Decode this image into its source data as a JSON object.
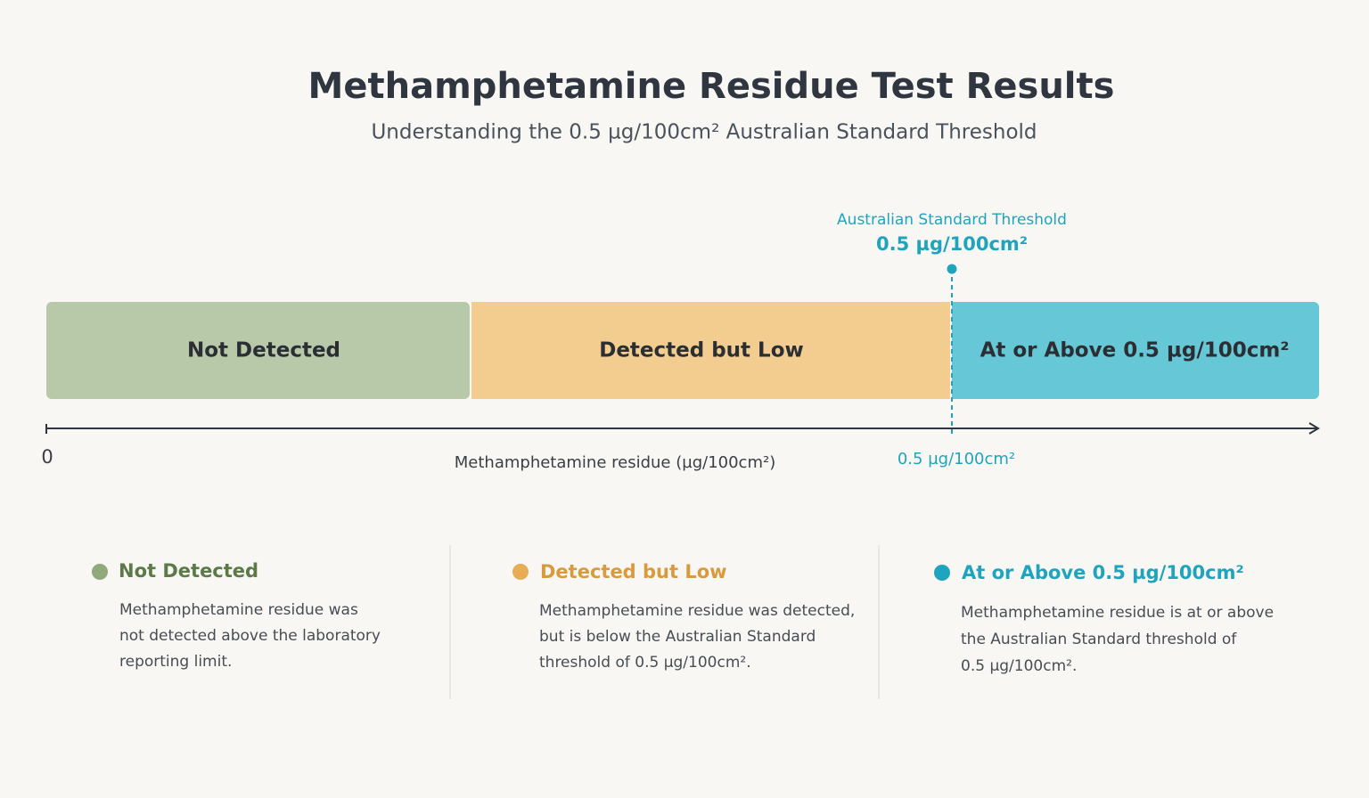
{
  "header": {
    "title": "Methamphetamine Residue Test Results",
    "subtitle": "Understanding the 0.5 µg/100cm² Australian Standard Threshold"
  },
  "threshold": {
    "label": "Australian Standard Threshold",
    "value": "0.5 µg/100cm²"
  },
  "bands": [
    {
      "label": "Not Detected"
    },
    {
      "label": "Detected but Low"
    },
    {
      "label": "At or Above 0.5 µg/100cm²"
    }
  ],
  "axis": {
    "origin": "0",
    "label": "Methamphetamine residue (µg/100cm²)",
    "threshold_label": "0.5 µg/100cm²"
  },
  "legend": [
    {
      "title": "Not Detected",
      "lines": [
        "Methamphetamine residue was",
        "not detected above the laboratory",
        "reporting limit."
      ]
    },
    {
      "title": "Detected but Low",
      "lines": [
        "Methamphetamine residue was detected,",
        "but is below the Australian Standard",
        "threshold of 0.5 µg/100cm²."
      ]
    },
    {
      "title": "At or Above 0.5 µg/100cm²",
      "lines": [
        "Methamphetamine residue is at or above",
        "the Australian Standard threshold of",
        "0.5 µg/100cm²."
      ]
    }
  ]
}
